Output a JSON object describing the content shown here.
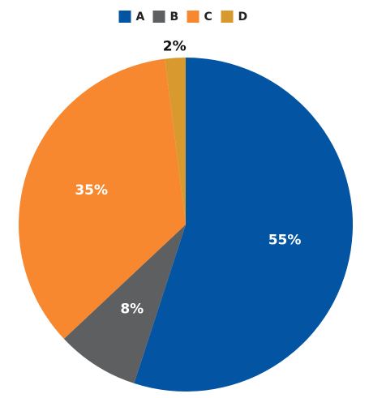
{
  "chart_data": {
    "type": "pie",
    "categories": [
      "A",
      "B",
      "C",
      "D"
    ],
    "values": [
      55,
      8,
      35,
      2
    ],
    "value_labels": [
      "55%",
      "8%",
      "35%",
      "2%"
    ],
    "colors": [
      "#0354a3",
      "#5e5f61",
      "#f7882f",
      "#d89a2e"
    ],
    "legend": "top"
  }
}
